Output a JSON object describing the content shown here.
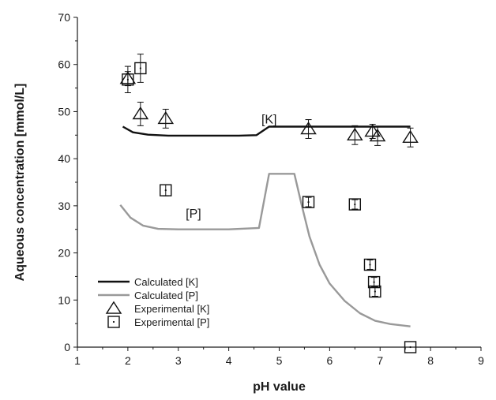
{
  "chart_data": {
    "type": "scatter",
    "xlabel": "pH value",
    "ylabel": "Aqueous concentration [mmol/L]",
    "xlim": [
      1,
      9
    ],
    "ylim": [
      0,
      70
    ],
    "x_ticks": [
      "1",
      "2",
      "3",
      "4",
      "5",
      "6",
      "7",
      "8",
      "9"
    ],
    "y_ticks": [
      "0",
      "10",
      "20",
      "30",
      "40",
      "50",
      "60",
      "70"
    ],
    "annotations": [
      {
        "text": "[K]",
        "x": 4.8,
        "y": 47.5
      },
      {
        "text": "[P]",
        "x": 3.3,
        "y": 27.5
      }
    ],
    "legend_position": "bottom-left",
    "series": [
      {
        "name": "Calculated [K]",
        "kind": "line",
        "color": "#111111",
        "x": [
          1.9,
          2.1,
          2.4,
          2.8,
          3.5,
          4.2,
          4.55,
          4.8,
          5.0,
          5.5,
          6.0,
          6.5,
          7.0,
          7.6
        ],
        "y": [
          46.8,
          45.6,
          45.1,
          44.9,
          44.9,
          44.9,
          45.0,
          46.8,
          46.8,
          46.8,
          46.8,
          46.8,
          46.8,
          46.8
        ]
      },
      {
        "name": "Calculated [P]",
        "kind": "line",
        "color": "#999999",
        "x": [
          1.85,
          2.05,
          2.3,
          2.6,
          3.0,
          3.5,
          4.0,
          4.6,
          4.8,
          5.0,
          5.3,
          5.45,
          5.6,
          5.8,
          6.0,
          6.3,
          6.6,
          6.9,
          7.2,
          7.6
        ],
        "y": [
          30.2,
          27.5,
          25.8,
          25.1,
          25.0,
          25.0,
          25.0,
          25.3,
          36.8,
          36.8,
          36.8,
          30.0,
          23.5,
          17.5,
          13.5,
          9.8,
          7.2,
          5.6,
          4.9,
          4.4
        ]
      },
      {
        "name": "Experimental [K]",
        "kind": "marker",
        "marker": "triangle",
        "color": "#111111",
        "points": [
          {
            "x": 2.0,
            "y": 57.0,
            "err": 1.5
          },
          {
            "x": 2.25,
            "y": 49.5,
            "err": 2.5
          },
          {
            "x": 2.75,
            "y": 48.5,
            "err": 2.0
          },
          {
            "x": 5.58,
            "y": 46.3,
            "err": 2.0
          },
          {
            "x": 6.5,
            "y": 45.0,
            "err": 2.0
          },
          {
            "x": 6.85,
            "y": 45.8,
            "err": 1.5
          },
          {
            "x": 6.95,
            "y": 44.8,
            "err": 2.0
          },
          {
            "x": 7.6,
            "y": 44.5,
            "err": 2.0
          }
        ]
      },
      {
        "name": "Experimental [P]",
        "kind": "marker",
        "marker": "square",
        "color": "#111111",
        "points": [
          {
            "x": 2.0,
            "y": 56.8,
            "err": 2.8
          },
          {
            "x": 2.25,
            "y": 59.2,
            "err": 3.0
          },
          {
            "x": 2.75,
            "y": 33.3,
            "err": 1.2
          },
          {
            "x": 5.58,
            "y": 30.8,
            "err": 1.0
          },
          {
            "x": 6.5,
            "y": 30.3,
            "err": 1.0
          },
          {
            "x": 6.8,
            "y": 17.5,
            "err": 1.0
          },
          {
            "x": 6.88,
            "y": 13.8,
            "err": 1.0
          },
          {
            "x": 6.9,
            "y": 11.8,
            "err": 1.0
          },
          {
            "x": 7.6,
            "y": 0.0,
            "err": 0.0
          }
        ]
      }
    ]
  }
}
